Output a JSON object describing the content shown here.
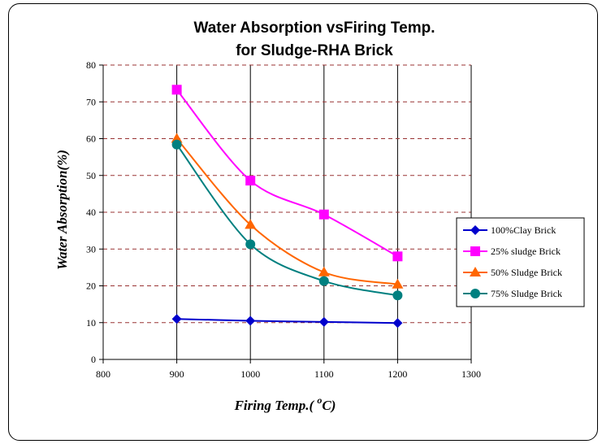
{
  "chart_data": {
    "type": "line",
    "title_line1": "Water Absorption vsFiring Temp.",
    "title_line2": "for Sludge-RHA Brick",
    "xlabel_main": "Firing Temp.( ",
    "xlabel_sup": "o",
    "xlabel_end": "C)",
    "ylabel": "Water Absorption(%)",
    "xlim": [
      800,
      1300
    ],
    "ylim": [
      0,
      80
    ],
    "x_ticks": [
      "800",
      "900",
      "1000",
      "1100",
      "1200",
      "1300"
    ],
    "y_ticks": [
      "0",
      "10",
      "20",
      "30",
      "40",
      "50",
      "60",
      "70",
      "80"
    ],
    "grid": "vertical solid at x ticks, horizontal dashed at y ticks",
    "legend_placement": "right",
    "series": [
      {
        "name": "100%Clay Brick",
        "color": "#0000CC",
        "marker": "diamond",
        "x": [
          900,
          1000,
          1100,
          1200
        ],
        "y": [
          11,
          10.5,
          10.2,
          9.9
        ]
      },
      {
        "name": "25% sludge Brick",
        "color": "#FF00FF",
        "marker": "square",
        "x": [
          900,
          1000,
          1100,
          1200
        ],
        "y": [
          73.3,
          48.6,
          39.4,
          28
        ]
      },
      {
        "name": "50% Sludge Brick",
        "color": "#FF6600",
        "marker": "triangle",
        "x": [
          900,
          1000,
          1100,
          1200
        ],
        "y": [
          60,
          36.6,
          23.7,
          20.4
        ]
      },
      {
        "name": "75% Sludge Brick",
        "color": "#008080",
        "marker": "circle",
        "x": [
          900,
          1000,
          1100,
          1200
        ],
        "y": [
          58.4,
          31.3,
          21.3,
          17.4
        ]
      }
    ]
  }
}
